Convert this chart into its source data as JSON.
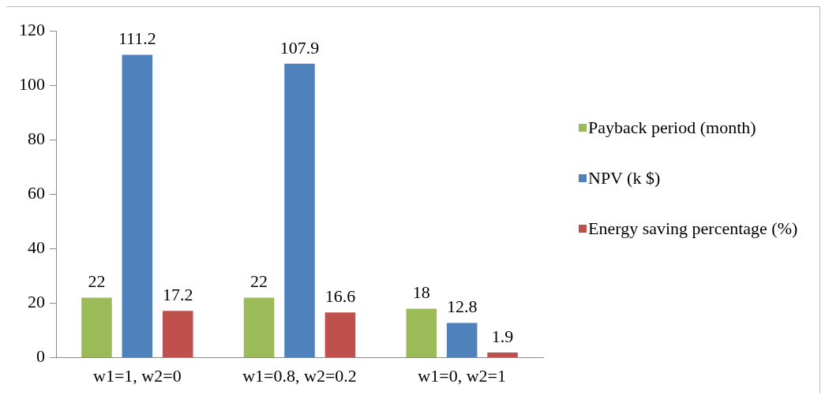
{
  "chart_data": {
    "type": "bar",
    "categories": [
      "w1=1, w2=0",
      "w1=0.8, w2=0.2",
      "w1=0, w2=1"
    ],
    "series": [
      {
        "name": "Payback period (month)",
        "color": "#9bbb59",
        "values": [
          22,
          22,
          18
        ]
      },
      {
        "name": "NPV (k $)",
        "color": "#4f81bd",
        "values": [
          111.2,
          107.9,
          12.8
        ]
      },
      {
        "name": "Energy saving percentage (%)",
        "color": "#c0504d",
        "values": [
          17.2,
          16.6,
          1.9
        ]
      }
    ],
    "ylim": [
      0,
      120
    ],
    "yticks": [
      0,
      20,
      40,
      60,
      80,
      100,
      120
    ],
    "grid": false,
    "legend": "right",
    "data_labels": true
  }
}
